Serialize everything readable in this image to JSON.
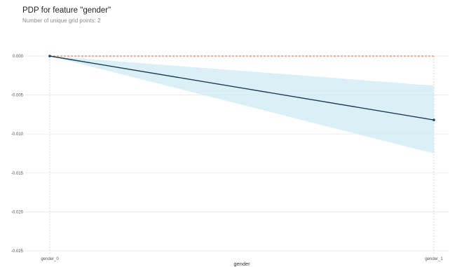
{
  "title": "PDP for feature \"gender\"",
  "subtitle": "Number of unique grid points: 2",
  "chart_data": {
    "type": "line",
    "x": [
      "gender_0",
      "gender_1"
    ],
    "xlabel": "gender",
    "ylabel": "",
    "ylim": [
      -0.025,
      0.0
    ],
    "yticks": [
      "0.000",
      "-0.005",
      "-0.010",
      "-0.015",
      "-0.020",
      "-0.025"
    ],
    "series": [
      {
        "values": [
          0.0,
          -0.0082
        ],
        "lower": [
          0.0,
          -0.0125
        ],
        "upper": [
          0.0,
          -0.0038
        ]
      }
    ],
    "baseline": 0.0,
    "grid": true,
    "colors": {
      "line": "#1d3f55",
      "band": "#cfe9f3",
      "baseline": "#e0623a",
      "grid": "#e4e4e4"
    }
  }
}
